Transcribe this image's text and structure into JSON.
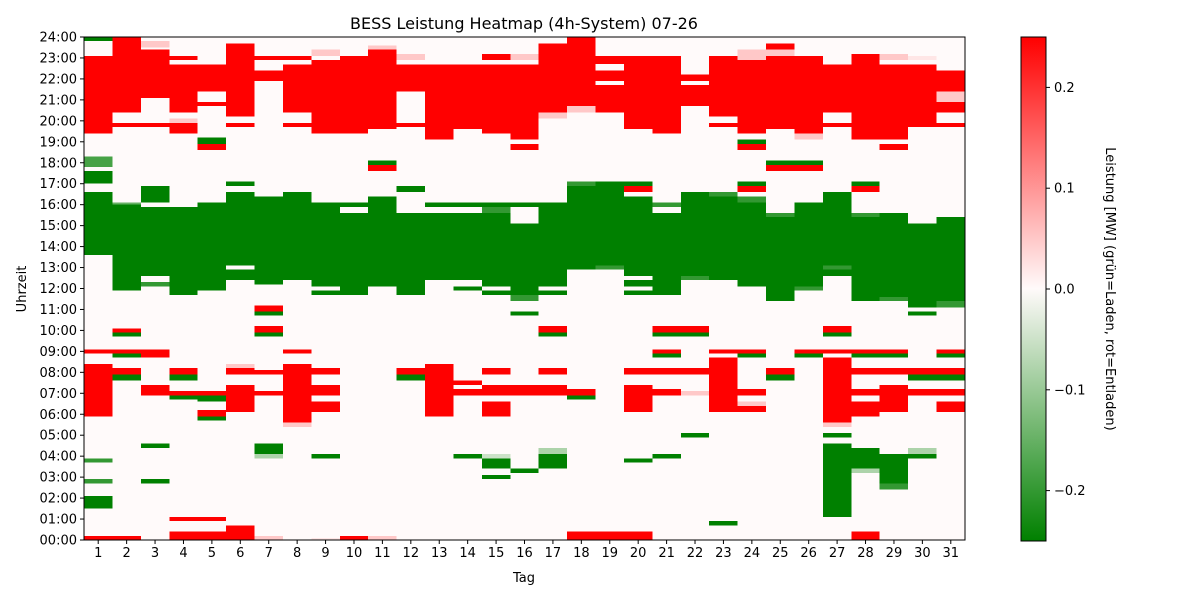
{
  "chart_data": {
    "type": "heatmap",
    "title": "BESS Leistung Heatmap (4h-System) 07-26",
    "xlabel": "Tag",
    "ylabel": "Uhrzeit",
    "colorbar_label": "Leistung [MW] (grün=Laden, rot=Entladen)",
    "colorbar_ticks": [
      "−0.2",
      "−0.1",
      "0.0",
      "0.1",
      "0.2"
    ],
    "colorbar_tick_values": [
      -0.2,
      -0.1,
      0.0,
      0.1,
      0.2
    ],
    "color_range": [
      -0.25,
      0.25
    ],
    "colors": {
      "charge": "#008000",
      "neutral": "#fffafa",
      "discharge": "#ff0000"
    },
    "x_ticks": [
      "1",
      "2",
      "3",
      "4",
      "5",
      "6",
      "7",
      "8",
      "9",
      "10",
      "11",
      "12",
      "13",
      "14",
      "15",
      "16",
      "17",
      "18",
      "19",
      "20",
      "21",
      "22",
      "23",
      "24",
      "25",
      "26",
      "27",
      "28",
      "29",
      "30",
      "31"
    ],
    "y_ticks": [
      "00:00",
      "01:00",
      "02:00",
      "03:00",
      "04:00",
      "05:00",
      "06:00",
      "07:00",
      "08:00",
      "09:00",
      "10:00",
      "11:00",
      "12:00",
      "13:00",
      "14:00",
      "15:00",
      "16:00",
      "17:00",
      "18:00",
      "19:00",
      "20:00",
      "21:00",
      "22:00",
      "23:00",
      "24:00"
    ],
    "days": 31,
    "hours": 24,
    "discharge_power": 0.25,
    "charge_power": -0.25,
    "segments": [
      {
        "day": 1,
        "type": "c",
        "from": [
          13.6,
          16.6,
          17.0,
          17.8,
          21.4
        ],
        "to": [
          16.6,
          17.6,
          17.95,
          18.3,
          21.4
        ]
      },
      {
        "day": 1,
        "type": "d",
        "from": [
          0,
          5.9,
          8.9,
          19.4
        ],
        "to": [
          0.2,
          8.4,
          9.1,
          23.1
        ]
      },
      {
        "day": 1,
        "type": "c",
        "from": [
          1.5,
          2.7,
          3.7,
          23.8
        ],
        "to": [
          2.1,
          2.9,
          3.9,
          24
        ]
      }
    ]
  }
}
